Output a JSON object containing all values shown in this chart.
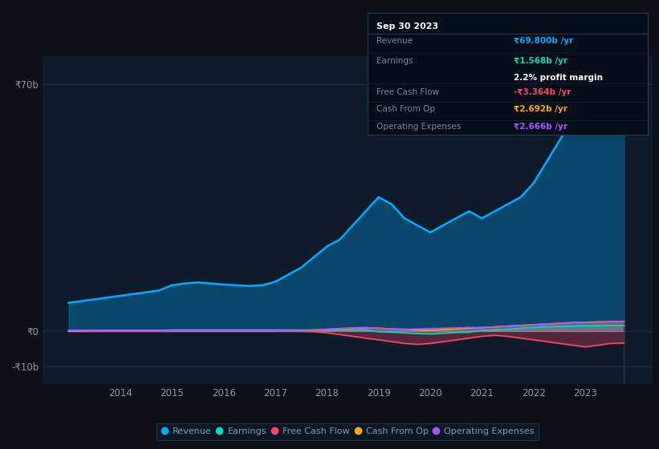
{
  "background_color": "#0d1117",
  "plot_bg_color": "#0d1b2a",
  "grid_color": "#1e3048",
  "text_color": "#8899aa",
  "ylabel_70b": "₹70b",
  "ylabel_0": "₹0",
  "ylabel_neg10b": "-₹10b",
  "x_years": [
    2013.0,
    2013.25,
    2013.5,
    2013.75,
    2014.0,
    2014.25,
    2014.5,
    2014.75,
    2015.0,
    2015.25,
    2015.5,
    2015.75,
    2016.0,
    2016.25,
    2016.5,
    2016.75,
    2017.0,
    2017.25,
    2017.5,
    2017.75,
    2018.0,
    2018.25,
    2018.5,
    2018.75,
    2019.0,
    2019.25,
    2019.5,
    2019.75,
    2020.0,
    2020.25,
    2020.5,
    2020.75,
    2021.0,
    2021.25,
    2021.5,
    2021.75,
    2022.0,
    2022.25,
    2022.5,
    2022.75,
    2023.0,
    2023.25,
    2023.5,
    2023.75
  ],
  "revenue": [
    8,
    8.5,
    9,
    9.5,
    10,
    10.5,
    11,
    11.5,
    13,
    13.5,
    13.8,
    13.5,
    13.2,
    13.0,
    12.8,
    13.0,
    14,
    16,
    18,
    21,
    24,
    26,
    30,
    34,
    38,
    36,
    32,
    30,
    28,
    30,
    32,
    34,
    32,
    34,
    36,
    38,
    42,
    48,
    54,
    60,
    65,
    68,
    70,
    71
  ],
  "earnings": [
    0.2,
    0.2,
    0.2,
    0.2,
    0.2,
    0.2,
    0.2,
    0.2,
    0.3,
    0.3,
    0.3,
    0.3,
    0.3,
    0.3,
    0.3,
    0.3,
    0.3,
    0.3,
    0.3,
    0.3,
    0.3,
    0.3,
    0.3,
    0.3,
    -0.2,
    -0.3,
    -0.5,
    -0.7,
    -0.8,
    -0.6,
    -0.4,
    -0.3,
    0.2,
    0.3,
    0.5,
    0.8,
    1.0,
    1.2,
    1.3,
    1.4,
    1.5,
    1.5,
    1.6,
    1.6
  ],
  "free_cash_flow": [
    -0.1,
    -0.1,
    -0.1,
    -0.1,
    -0.1,
    -0.1,
    -0.1,
    -0.1,
    -0.1,
    -0.1,
    -0.1,
    -0.1,
    -0.1,
    -0.1,
    -0.1,
    -0.1,
    -0.1,
    -0.1,
    -0.1,
    -0.2,
    -0.5,
    -1.0,
    -1.5,
    -2.0,
    -2.5,
    -3.0,
    -3.5,
    -3.8,
    -3.5,
    -3.0,
    -2.5,
    -2.0,
    -1.5,
    -1.2,
    -1.5,
    -2.0,
    -2.5,
    -3.0,
    -3.5,
    -4.0,
    -4.5,
    -4.0,
    -3.5,
    -3.4
  ],
  "cash_from_op": [
    0.0,
    0.0,
    0.1,
    0.1,
    0.1,
    0.1,
    0.1,
    0.1,
    0.1,
    0.1,
    0.1,
    0.1,
    0.1,
    0.1,
    0.1,
    0.1,
    0.1,
    0.2,
    0.2,
    0.3,
    0.5,
    0.7,
    0.8,
    0.9,
    0.8,
    0.6,
    0.5,
    0.3,
    0.2,
    0.4,
    0.6,
    0.8,
    1.0,
    1.2,
    1.4,
    1.6,
    1.8,
    2.0,
    2.2,
    2.4,
    2.5,
    2.6,
    2.7,
    2.7
  ],
  "operating_expenses": [
    0.1,
    0.1,
    0.1,
    0.1,
    0.1,
    0.1,
    0.1,
    0.1,
    0.1,
    0.1,
    0.1,
    0.1,
    0.1,
    0.1,
    0.1,
    0.1,
    0.1,
    0.1,
    0.2,
    0.3,
    0.5,
    0.7,
    0.9,
    1.0,
    0.8,
    0.6,
    0.5,
    0.6,
    0.7,
    0.8,
    0.9,
    1.0,
    1.0,
    1.2,
    1.4,
    1.6,
    1.8,
    2.0,
    2.2,
    2.4,
    2.5,
    2.6,
    2.7,
    2.7
  ],
  "revenue_color": "#00aaff",
  "earnings_color": "#00ddbb",
  "free_cash_flow_color": "#ff4466",
  "cash_from_op_color": "#ffaa00",
  "operating_expenses_color": "#aa55ff",
  "tooltip_bg": "#050e18",
  "tooltip_border": "#2a3a4a",
  "tooltip_title": "Sep 30 2023",
  "tooltip_revenue_label": "Revenue",
  "tooltip_revenue_value": "₹69.800b /yr",
  "tooltip_revenue_color": "#00aaff",
  "tooltip_earnings_label": "Earnings",
  "tooltip_earnings_value": "₹1.568b /yr",
  "tooltip_earnings_color": "#00ddbb",
  "tooltip_margin_value": "2.2% profit margin",
  "tooltip_margin_color": "#ffffff",
  "tooltip_fcf_label": "Free Cash Flow",
  "tooltip_fcf_value": "-₹3.364b /yr",
  "tooltip_fcf_color": "#ff4466",
  "tooltip_cashop_label": "Cash From Op",
  "tooltip_cashop_value": "₹2.692b /yr",
  "tooltip_cashop_color": "#ffaa00",
  "tooltip_opex_label": "Operating Expenses",
  "tooltip_opex_value": "₹2.666b /yr",
  "tooltip_opex_color": "#aa55ff",
  "legend_labels": [
    "Revenue",
    "Earnings",
    "Free Cash Flow",
    "Cash From Op",
    "Operating Expenses"
  ],
  "legend_colors": [
    "#00aaff",
    "#00ddbb",
    "#ff4466",
    "#ffaa00",
    "#aa55ff"
  ],
  "ylim_min": -15,
  "ylim_max": 78,
  "xlim_min": 2012.5,
  "xlim_max": 2024.3,
  "xticks": [
    2014,
    2015,
    2016,
    2017,
    2018,
    2019,
    2020,
    2021,
    2022,
    2023
  ],
  "yticks": [
    70,
    0,
    -10
  ],
  "fill_alpha": 0.3
}
